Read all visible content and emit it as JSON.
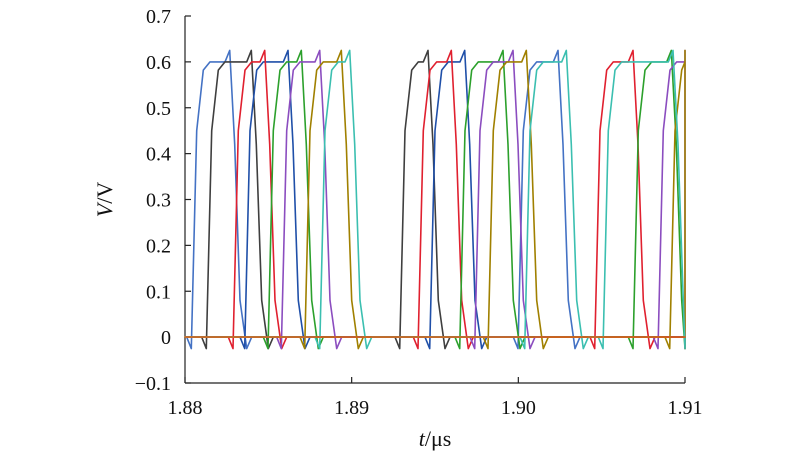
{
  "chart_data": {
    "type": "line",
    "xlabel": {
      "var": "t",
      "unit": "μs"
    },
    "ylabel": {
      "var": "V",
      "unit": "V"
    },
    "xlim": [
      1.88,
      1.91
    ],
    "ylim": [
      -0.1,
      0.7
    ],
    "x_ticks": [
      "1.88",
      "1.89",
      "1.90",
      "1.91"
    ],
    "y_ticks": [
      "−0.1",
      "0",
      "0.1",
      "0.2",
      "0.3",
      "0.4",
      "0.5",
      "0.6",
      "0.7"
    ],
    "high_level": 0.6,
    "low_level": 0.0,
    "overshoot": 0.625,
    "undershoot": -0.025,
    "series": [
      {
        "color": "#4472c4",
        "pulses": [
          [
            1.8803,
            1.8829
          ],
          [
            1.8999,
            1.9026
          ]
        ]
      },
      {
        "color": "#3f3f3f",
        "pulses": [
          [
            1.8812,
            1.8842
          ],
          [
            1.8928,
            1.8948
          ]
        ]
      },
      {
        "color": "#1f4fa8",
        "pulses": [
          [
            1.8835,
            1.8864
          ],
          [
            1.8946,
            1.897
          ]
        ]
      },
      {
        "color": "#e0202f",
        "pulses": [
          [
            1.8828,
            1.885
          ],
          [
            1.8939,
            1.8962
          ],
          [
            1.9045,
            1.9071
          ]
        ]
      },
      {
        "color": "#2ca02c",
        "pulses": [
          [
            1.8849,
            1.8872
          ],
          [
            1.8964,
            1.8993
          ],
          [
            1.9068,
            1.9094
          ]
        ]
      },
      {
        "color": "#8b4dbf",
        "pulses": [
          [
            1.8857,
            1.8883
          ],
          [
            1.8973,
            1.8999
          ],
          [
            1.9083,
            1.9108
          ]
        ]
      },
      {
        "color": "#a08000",
        "pulses": [
          [
            1.8871,
            1.8896
          ],
          [
            1.8981,
            1.9007
          ],
          [
            1.909,
            1.911
          ]
        ]
      },
      {
        "color": "#3bbfb0",
        "pulses": [
          [
            1.888,
            1.8901
          ],
          [
            1.9003,
            1.9031
          ],
          [
            1.905,
            1.9095
          ]
        ]
      },
      {
        "color": "#d4601a",
        "pulses": []
      }
    ]
  }
}
